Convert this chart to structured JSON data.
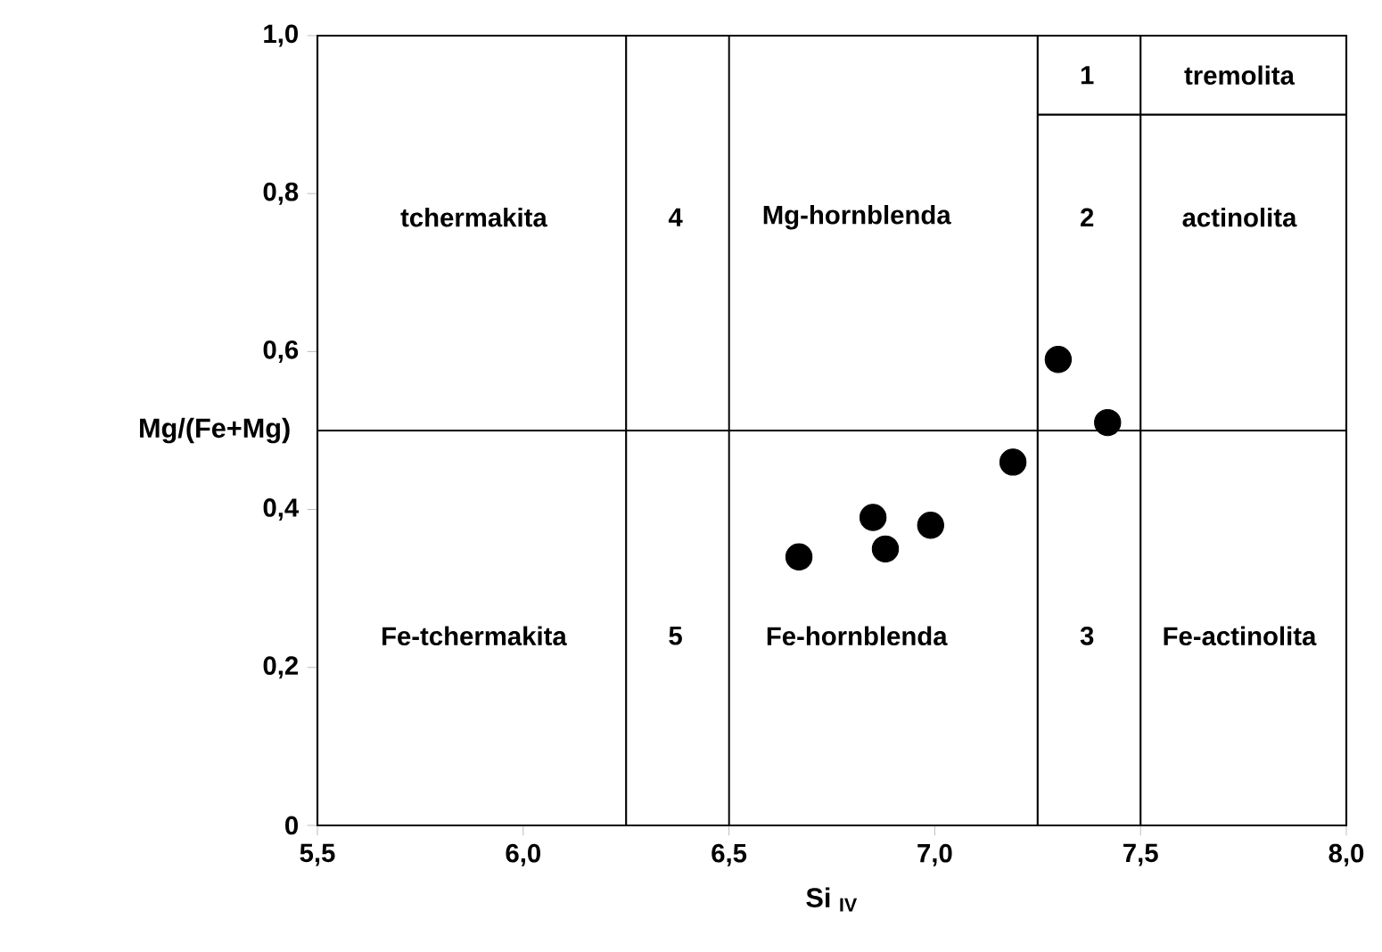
{
  "chart_data": {
    "type": "scatter",
    "xlabel": "Si $_{IV}$",
    "ylabel": "Mg/(Fe+Mg)",
    "xlim": [
      5.5,
      8.0
    ],
    "ylim": [
      0,
      1.0
    ],
    "xticks": [
      {
        "value": 5.5,
        "label": "5,5"
      },
      {
        "value": 6.0,
        "label": "6,0"
      },
      {
        "value": 6.5,
        "label": "6,5"
      },
      {
        "value": 7.0,
        "label": "7,0"
      },
      {
        "value": 7.5,
        "label": "7,5"
      },
      {
        "value": 8.0,
        "label": "8,0"
      }
    ],
    "yticks": [
      0,
      {
        "value": 0.2,
        "label": "0,2"
      },
      {
        "value": 0.4,
        "label": "0,4"
      },
      {
        "value": 0.6,
        "label": "0,6"
      },
      {
        "value": 0.8,
        "label": "0,8"
      },
      {
        "value": 1.0,
        "label": "1,0"
      }
    ],
    "grid": false,
    "series": [
      {
        "color": "#000000",
        "marker": "circle",
        "x": [
          6.67,
          6.85,
          6.88,
          6.99,
          7.19,
          7.3,
          7.42
        ],
        "values": [
          0.34,
          0.39,
          0.35,
          0.38,
          0.46,
          0.59,
          0.51
        ]
      },
      {
        "type": "line",
        "marker": "none",
        "color": "#000000",
        "x": [
          7.25,
          8.0
        ],
        "values": [
          0.9,
          0.9
        ]
      }
    ],
    "ref_lines": [
      {
        "axis": "x",
        "value": 6.25,
        "color": "#000000"
      },
      {
        "axis": "x",
        "value": 6.5,
        "color": "#000000"
      },
      {
        "axis": "x",
        "value": 7.25,
        "color": "#000000"
      },
      {
        "axis": "x",
        "value": 7.5,
        "color": "#000000"
      },
      {
        "axis": "y",
        "value": 0.5,
        "color": "#000000"
      }
    ],
    "annotations": [
      "tchermakita",
      "4",
      "Mg-hornblenda",
      "2",
      "actinolita",
      "1",
      "tremolita",
      "Fe-tchermakita",
      "5",
      "Fe-hornblenda",
      "3",
      "Fe-actinolita"
    ]
  }
}
